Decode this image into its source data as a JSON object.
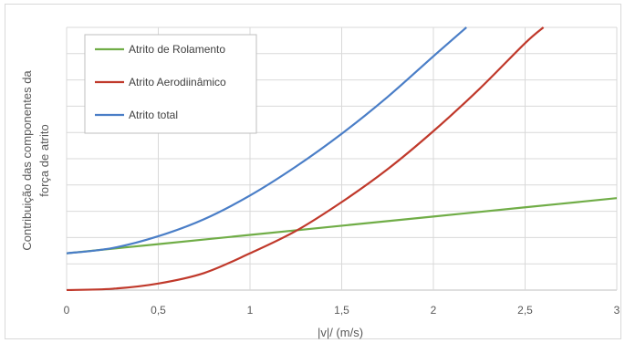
{
  "chart_data": {
    "type": "line",
    "title": "",
    "xlabel": "|v|/ (m/s)",
    "ylabel_lines": [
      "Contribuição das componentes da",
      "força de atrito"
    ],
    "xlim": [
      0,
      3
    ],
    "ylim": [
      0,
      10
    ],
    "x_ticks": [
      "0",
      "0,5",
      "1",
      "1,5",
      "2",
      "2,5",
      "3"
    ],
    "y_tick_labels_shown": false,
    "grid": true,
    "legend_position": "top-left",
    "series": [
      {
        "name": "Atrito de Rolamento",
        "color": "#70ad47",
        "x": [
          0,
          0.5,
          1,
          1.5,
          2,
          2.5,
          3
        ],
        "y": [
          1.4,
          1.75,
          2.1,
          2.45,
          2.8,
          3.15,
          3.5
        ]
      },
      {
        "name": "Atrito Aerodiinâmico",
        "color": "#c0392b",
        "x": [
          0,
          0.25,
          0.5,
          0.75,
          1,
          1.25,
          1.5,
          1.75,
          2,
          2.25,
          2.5,
          2.6
        ],
        "y": [
          0,
          0.05,
          0.25,
          0.65,
          1.4,
          2.25,
          3.35,
          4.6,
          6.05,
          7.65,
          9.4,
          10
        ]
      },
      {
        "name": "Atrito total",
        "color": "#4a7ec7",
        "x": [
          0,
          0.25,
          0.5,
          0.75,
          1,
          1.25,
          1.5,
          1.75,
          2,
          2.18
        ],
        "y": [
          1.4,
          1.6,
          2.05,
          2.7,
          3.6,
          4.7,
          5.95,
          7.35,
          8.9,
          10
        ]
      }
    ]
  }
}
